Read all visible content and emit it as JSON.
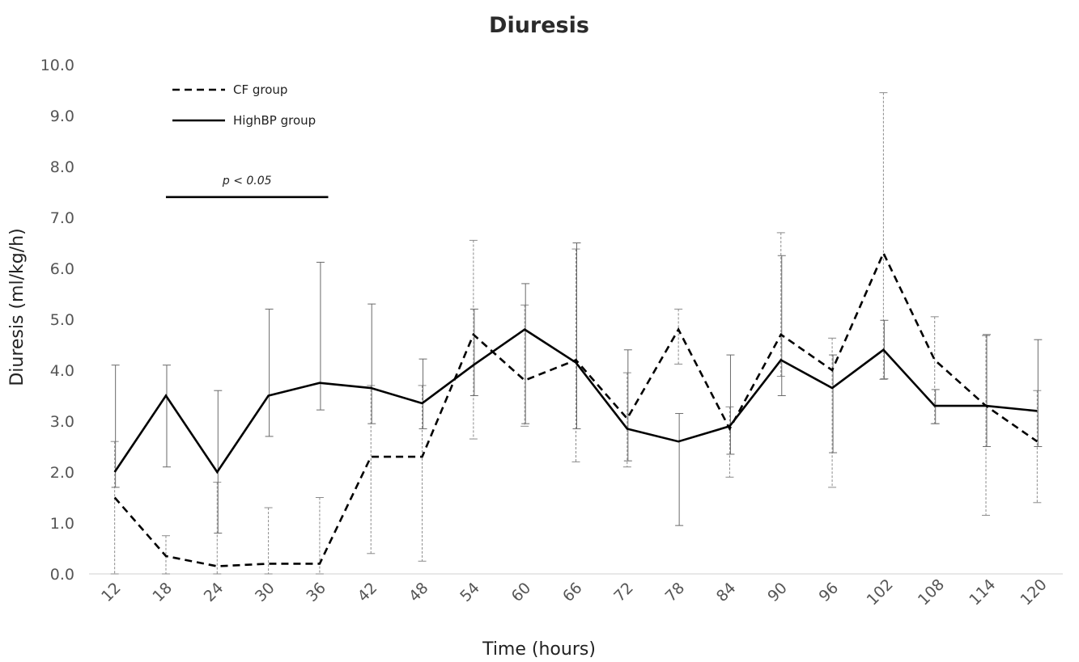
{
  "chart_data": {
    "type": "line",
    "title": "Diuresis",
    "xlabel": "Time (hours)",
    "ylabel": "Diuresis (ml/kg/h)",
    "ylim": [
      0,
      10
    ],
    "yticks": [
      "0.0",
      "1.0",
      "2.0",
      "3.0",
      "4.0",
      "5.0",
      "6.0",
      "7.0",
      "8.0",
      "9.0",
      "10.0"
    ],
    "x": [
      12,
      18,
      24,
      30,
      36,
      42,
      48,
      54,
      60,
      66,
      72,
      78,
      84,
      90,
      96,
      102,
      108,
      114,
      120
    ],
    "grid": false,
    "legend_position": "top-left",
    "series": [
      {
        "name": "CF group",
        "line_style": "dashed",
        "values": [
          1.5,
          0.35,
          0.15,
          0.2,
          0.2,
          2.3,
          2.3,
          4.7,
          3.8,
          4.2,
          3.05,
          4.8,
          2.85,
          4.7,
          4.0,
          6.3,
          4.2,
          3.3,
          2.6
        ],
        "error_low": [
          0.0,
          0.0,
          0.0,
          0.0,
          0.0,
          0.4,
          0.25,
          2.65,
          2.9,
          2.2,
          2.1,
          4.12,
          1.9,
          3.88,
          1.7,
          3.82,
          2.95,
          1.15,
          1.4
        ],
        "error_high": [
          2.6,
          0.75,
          1.8,
          1.3,
          1.5,
          3.7,
          3.7,
          6.55,
          5.28,
          6.38,
          3.95,
          5.2,
          3.28,
          6.7,
          4.63,
          9.45,
          5.05,
          4.68,
          3.6
        ]
      },
      {
        "name": "HighBP group",
        "line_style": "solid",
        "values": [
          2.0,
          3.5,
          2.0,
          3.5,
          3.75,
          3.65,
          3.35,
          4.1,
          4.8,
          4.15,
          2.85,
          2.6,
          2.9,
          4.2,
          3.65,
          4.4,
          3.3,
          3.3,
          3.2
        ],
        "error_low": [
          1.7,
          2.1,
          0.8,
          2.7,
          3.22,
          2.95,
          2.85,
          3.5,
          2.95,
          2.85,
          2.22,
          0.95,
          2.35,
          3.5,
          2.38,
          3.83,
          2.95,
          2.5,
          2.5
        ],
        "error_high": [
          4.1,
          4.1,
          3.6,
          5.2,
          6.12,
          5.3,
          4.22,
          5.2,
          5.7,
          6.5,
          4.4,
          3.15,
          4.3,
          6.25,
          4.3,
          4.98,
          3.62,
          4.7,
          4.6
        ]
      }
    ],
    "annotations": [
      {
        "text": "p < 0.05",
        "x_start": 18,
        "x_end": 37,
        "y": 7.4
      }
    ]
  }
}
